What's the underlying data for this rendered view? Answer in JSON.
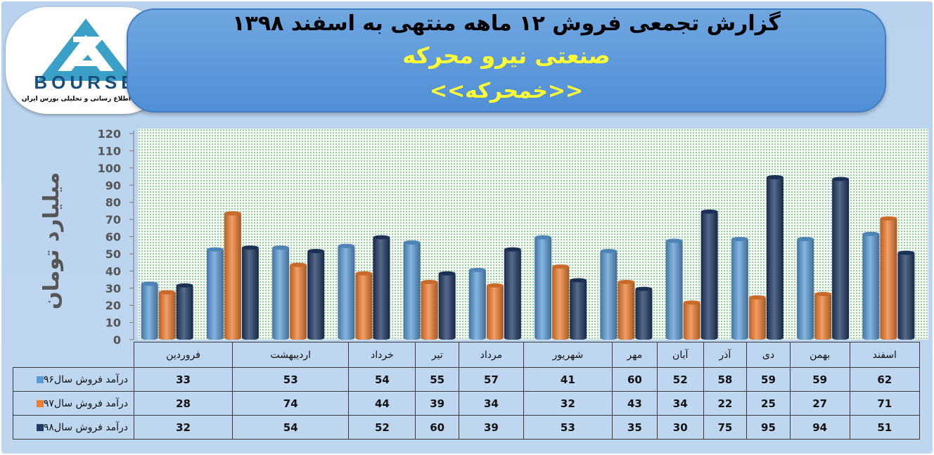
{
  "header": {
    "title": "گزارش تجمعی فروش  ۱۲ ماهه منتهی به اسفند ۱۳۹۸",
    "subtitle": "صنعتی نیرو محرکه",
    "symbol": "<<خمحرکه>>"
  },
  "logo": {
    "text": "BOURSE",
    "caption": "پایگاه اطلاع رسانی و تحلیلی بورس ایران"
  },
  "colors": {
    "series96": "#5b9bd5",
    "series97": "#ed7d31",
    "series98": "#1f3864"
  },
  "chart_data": {
    "type": "bar",
    "ylabel": "میلیارد تومان",
    "ylim": [
      0,
      120
    ],
    "yticks": [
      "0",
      "10",
      "20",
      "30",
      "40",
      "50",
      "60",
      "70",
      "80",
      "90",
      "100",
      "110",
      "120"
    ],
    "grid": false,
    "legend": "data-table",
    "categories": [
      "فروردین",
      "اردیبهشت",
      "خرداد",
      "تیر",
      "مرداد",
      "شهریور",
      "مهر",
      "آبان",
      "آذر",
      "دی",
      "بهمن",
      "اسفند"
    ],
    "series": [
      {
        "name": "درآمد فروش سال۹۶",
        "color": "#5b9bd5",
        "values": [
          33,
          53,
          54,
          55,
          57,
          41,
          60,
          52,
          58,
          59,
          59,
          62
        ]
      },
      {
        "name": "درآمد فروش سال۹۷",
        "color": "#ed7d31",
        "values": [
          28,
          74,
          44,
          39,
          34,
          32,
          43,
          34,
          22,
          25,
          27,
          71
        ]
      },
      {
        "name": "درآمد فروش سال۹۸",
        "color": "#1f3864",
        "values": [
          32,
          54,
          52,
          60,
          39,
          53,
          35,
          30,
          75,
          95,
          94,
          51
        ]
      }
    ]
  }
}
